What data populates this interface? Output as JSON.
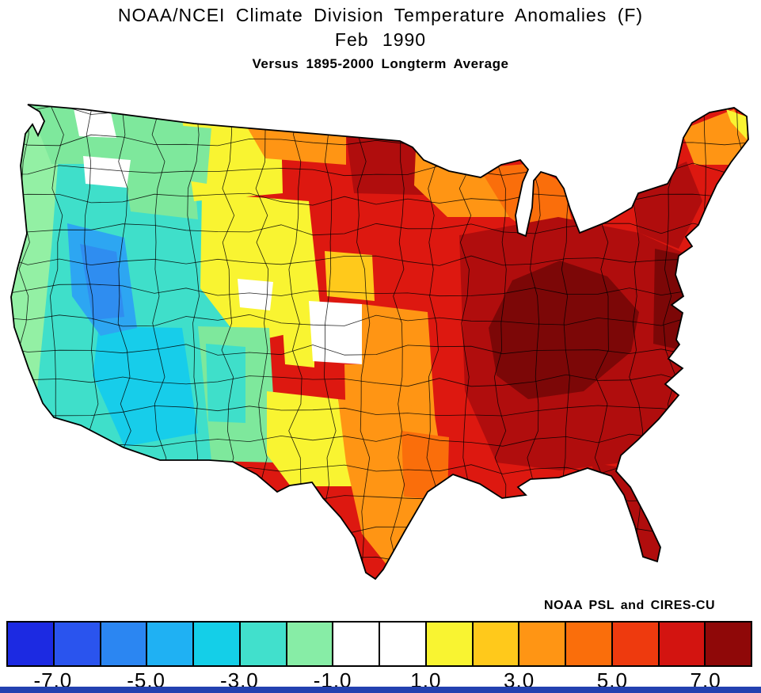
{
  "header": {
    "title": "NOAA/NCEI Climate Division Temperature Anomalies (F)",
    "subtitle": "Feb 1990",
    "baseline": "Versus 1895-2000 Longterm Average"
  },
  "attribution": "NOAA PSL and CIRES-CU",
  "colorbar": {
    "range_f": [
      -8,
      8
    ],
    "units": "degrees F anomaly",
    "colors": [
      "#1c2ae2",
      "#2a54ee",
      "#2b86f2",
      "#1fb1f3",
      "#14cfe8",
      "#41e0cc",
      "#87eda6",
      "#ffffff",
      "#ffffff",
      "#f9f431",
      "#ffc91b",
      "#ff9514",
      "#fa6e0b",
      "#ee3a0e",
      "#d31410",
      "#8f0808"
    ],
    "tick_labels": [
      "-7.0",
      "-5.0",
      "-3.0",
      "-1.0",
      "1.0",
      "3.0",
      "5.0",
      "7.0"
    ]
  },
  "map": {
    "type": "choropleth",
    "region": "Contiguous United States climate divisions",
    "palette": {
      "paleGreen": "#93f0a4",
      "green": "#7ee89c",
      "turquoise": "#3fdfca",
      "cyan": "#17cdea",
      "skyBlue": "#2da6f2",
      "blue": "#2f8df0",
      "white": "#ffffff",
      "yellow": "#f9f431",
      "amber": "#ffc91b",
      "orange": "#ff9514",
      "darkOrange": "#fa6e0b",
      "orangeRed": "#ee3a0e",
      "red": "#dd1810",
      "darkRed": "#b00d0d",
      "maroon": "#7c0707"
    },
    "pattern_summary": [
      {
        "area": "Nevada / Great Basin",
        "anomaly_f": "-4 to -5 (coolest)"
      },
      {
        "area": "Pacific Northwest and West Coast",
        "anomaly_f": "-1 to -3"
      },
      {
        "area": "Arizona / New Mexico / Utah / Idaho",
        "anomaly_f": "-1 to -3"
      },
      {
        "area": "Montana / Wyoming / Colorado",
        "anomaly_f": "0 to +2"
      },
      {
        "area": "Central Plains (Kansas / Nebraska)",
        "anomaly_f": "near 0"
      },
      {
        "area": "Northern Plains (Dakotas / Minnesota)",
        "anomaly_f": "+4 to +6"
      },
      {
        "area": "Texas / Southern Plains",
        "anomaly_f": "+1 to +3"
      },
      {
        "area": "Midwest and Deep South",
        "anomaly_f": "+5 to +7"
      },
      {
        "area": "Tennessee / Ohio Valley and Mid-Atlantic",
        "anomaly_f": "+7 and above (warmest)"
      },
      {
        "area": "Northeast",
        "anomaly_f": "+4 to +6"
      },
      {
        "area": "Maine",
        "anomaly_f": "+1 to +3"
      }
    ]
  },
  "window": {
    "bottom_bar_color": "#2341b0"
  }
}
